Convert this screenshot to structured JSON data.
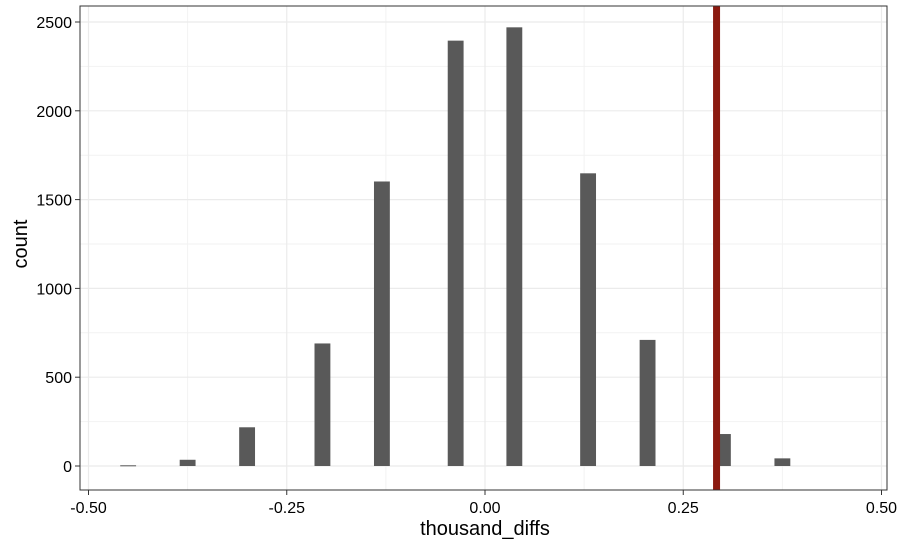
{
  "chart_data": {
    "type": "bar",
    "title": "",
    "xlabel": "thousand_diffs",
    "ylabel": "count",
    "xlim": [
      -0.5,
      0.5
    ],
    "ylim": [
      0,
      2500
    ],
    "x_ticks": [
      -0.5,
      -0.25,
      0.0,
      0.25,
      0.5
    ],
    "x_tick_labels": [
      "-0.50",
      "-0.25",
      "0.00",
      "0.25",
      "0.50"
    ],
    "y_ticks": [
      0,
      500,
      1000,
      1500,
      2000,
      2500
    ],
    "y_tick_labels": [
      "0",
      "500",
      "1000",
      "1500",
      "2000",
      "2500"
    ],
    "grid": true,
    "bar_width": 0.02,
    "bar_color": "#595959",
    "bars": [
      {
        "x": -0.45,
        "value": 4
      },
      {
        "x": -0.375,
        "value": 35
      },
      {
        "x": -0.3,
        "value": 218
      },
      {
        "x": -0.205,
        "value": 690
      },
      {
        "x": -0.13,
        "value": 1602
      },
      {
        "x": -0.037,
        "value": 2395
      },
      {
        "x": 0.037,
        "value": 2470
      },
      {
        "x": 0.13,
        "value": 1648
      },
      {
        "x": 0.205,
        "value": 710
      },
      {
        "x": 0.3,
        "value": 180
      },
      {
        "x": 0.375,
        "value": 43
      }
    ],
    "reference_line": {
      "x": 0.292,
      "color": "#8b1a10"
    }
  }
}
